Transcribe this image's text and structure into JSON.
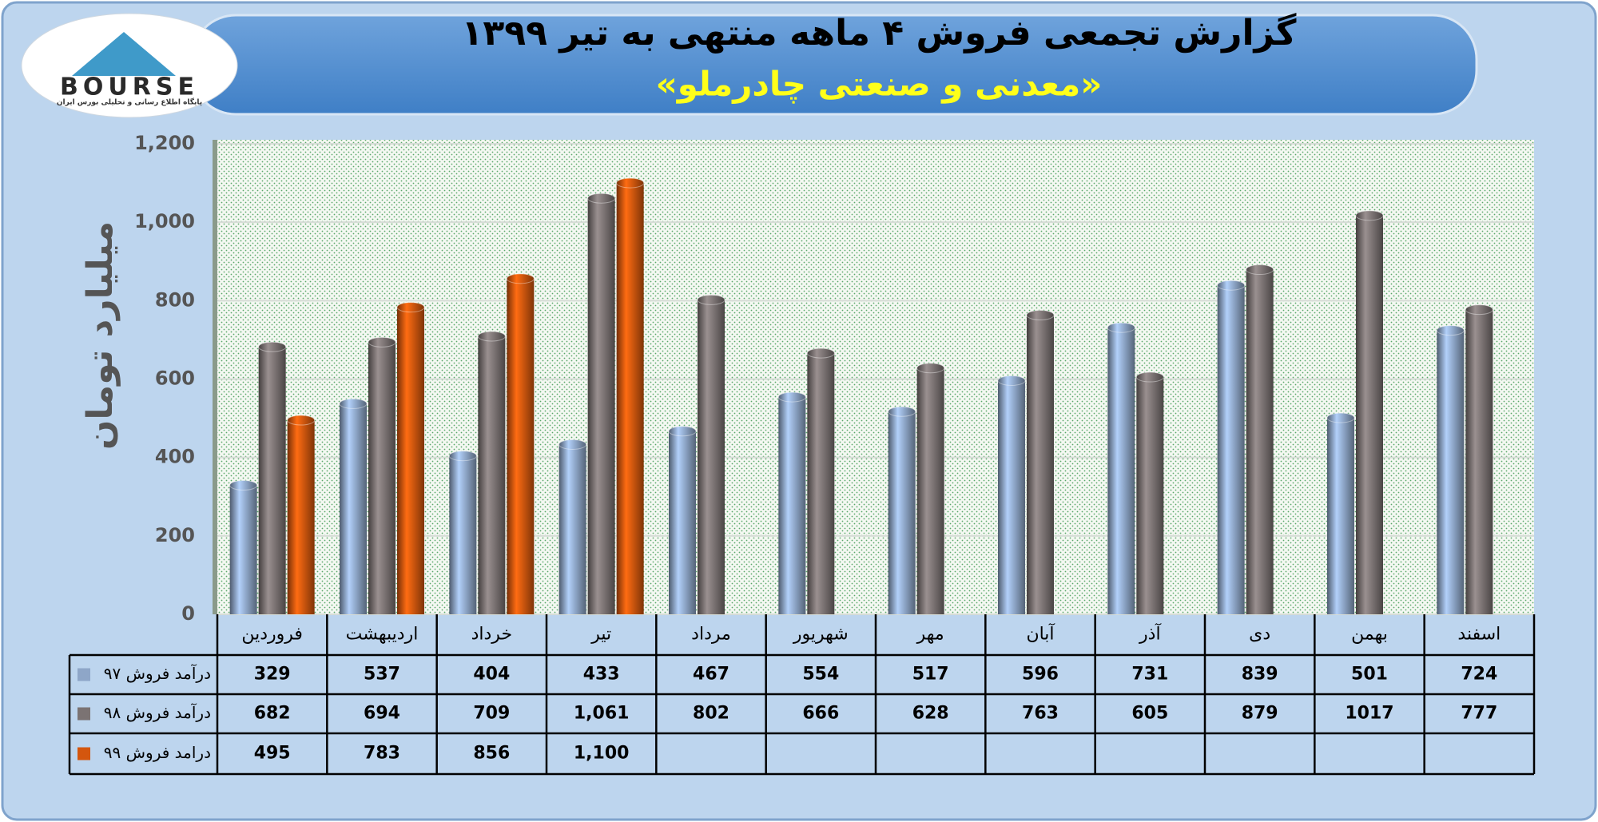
{
  "logo": {
    "text": "BOURSE",
    "caption": "پایگاه اطلاع رسانی و تحلیلی بورس ایران"
  },
  "chart_data": {
    "type": "bar",
    "title": "گزارش تجمعی فروش ۴ ماهه منتهی به تیر ۱۳۹۹",
    "subtitle": "«معدنی و صنعتی چادرملو»",
    "y_label": "میلیارد تومان",
    "categories": [
      "فروردین",
      "اردیبهشت",
      "خرداد",
      "تیر",
      "مرداد",
      "شهریور",
      "مهر",
      "آبان",
      "آذر",
      "دی",
      "بهمن",
      "اسفند"
    ],
    "series": [
      {
        "name": "درآمد فروش ۹۷",
        "color": "#8ea6c8",
        "values": [
          329,
          537,
          404,
          433,
          467,
          554,
          517,
          596,
          731,
          839,
          501,
          724
        ]
      },
      {
        "name": "درآمد فروش ۹۸",
        "color": "#7b7373",
        "values": [
          682,
          694,
          709,
          1061,
          802,
          666,
          628,
          763,
          605,
          879,
          1017,
          777
        ],
        "value_labels": [
          "682",
          "694",
          "709",
          "1,061",
          "802",
          "666",
          "628",
          "763",
          "605",
          "879",
          "1017",
          "777"
        ]
      },
      {
        "name": "درامد فروش ۹۹",
        "color": "#d4560e",
        "values": [
          495,
          783,
          856,
          1100,
          null,
          null,
          null,
          null,
          null,
          null,
          null,
          null
        ],
        "value_labels": [
          "495",
          "783",
          "856",
          "1,100",
          null,
          null,
          null,
          null,
          null,
          null,
          null,
          null
        ]
      }
    ],
    "ylim": [
      0,
      1200
    ],
    "yticks": [
      0,
      200,
      400,
      600,
      800,
      {
        "value": 1000,
        "label": "1,000"
      },
      {
        "value": 1200,
        "label": "1,200"
      }
    ],
    "grid": true
  }
}
